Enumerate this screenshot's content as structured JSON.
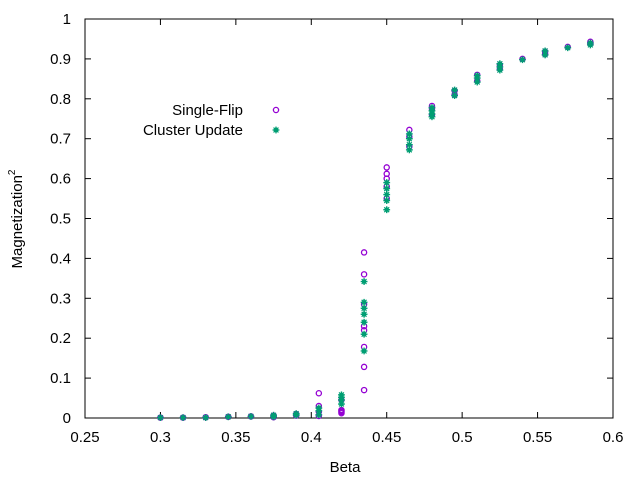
{
  "chart_data": {
    "type": "scatter",
    "title": "",
    "xlabel": "Beta",
    "ylabel": "Magnetization",
    "ylabel_superscript": "2",
    "xlim": [
      0.25,
      0.6
    ],
    "ylim": [
      0,
      1
    ],
    "xticks": [
      0.25,
      0.3,
      0.35,
      0.4,
      0.45,
      0.5,
      0.55,
      0.6
    ],
    "xtick_labels": [
      "0.25",
      "0.3",
      "0.35",
      "0.4",
      "0.45",
      "0.5",
      "0.55",
      "0.6"
    ],
    "yticks": [
      0,
      0.1,
      0.2,
      0.3,
      0.4,
      0.5,
      0.6,
      0.7,
      0.8,
      0.9,
      1
    ],
    "ytick_labels": [
      "0",
      "0.1",
      "0.2",
      "0.3",
      "0.4",
      "0.5",
      "0.6",
      "0.7",
      "0.8",
      "0.9",
      "1"
    ],
    "grid": false,
    "legend_position": "upper-left",
    "series": [
      {
        "name": "Single-Flip",
        "color": "#9400d3",
        "marker": "open-circle",
        "points": [
          [
            0.3,
            0.001
          ],
          [
            0.315,
            0.001
          ],
          [
            0.33,
            0.002
          ],
          [
            0.345,
            0.003
          ],
          [
            0.36,
            0.004
          ],
          [
            0.375,
            0.002
          ],
          [
            0.375,
            0.006
          ],
          [
            0.39,
            0.006
          ],
          [
            0.39,
            0.01
          ],
          [
            0.405,
            0.005
          ],
          [
            0.405,
            0.015
          ],
          [
            0.405,
            0.03
          ],
          [
            0.405,
            0.062
          ],
          [
            0.42,
            0.012
          ],
          [
            0.42,
            0.015
          ],
          [
            0.42,
            0.018
          ],
          [
            0.42,
            0.02
          ],
          [
            0.42,
            0.045
          ],
          [
            0.435,
            0.07
          ],
          [
            0.435,
            0.128
          ],
          [
            0.435,
            0.178
          ],
          [
            0.435,
            0.22
          ],
          [
            0.435,
            0.23
          ],
          [
            0.435,
            0.285
          ],
          [
            0.435,
            0.36
          ],
          [
            0.435,
            0.415
          ],
          [
            0.45,
            0.55
          ],
          [
            0.45,
            0.58
          ],
          [
            0.45,
            0.6
          ],
          [
            0.45,
            0.612
          ],
          [
            0.45,
            0.628
          ],
          [
            0.465,
            0.68
          ],
          [
            0.465,
            0.705
          ],
          [
            0.465,
            0.722
          ],
          [
            0.48,
            0.76
          ],
          [
            0.48,
            0.775
          ],
          [
            0.48,
            0.782
          ],
          [
            0.495,
            0.81
          ],
          [
            0.495,
            0.82
          ],
          [
            0.51,
            0.845
          ],
          [
            0.51,
            0.86
          ],
          [
            0.525,
            0.875
          ],
          [
            0.525,
            0.885
          ],
          [
            0.54,
            0.9
          ],
          [
            0.555,
            0.912
          ],
          [
            0.555,
            0.918
          ],
          [
            0.57,
            0.93
          ],
          [
            0.585,
            0.938
          ],
          [
            0.585,
            0.943
          ]
        ]
      },
      {
        "name": "Cluster Update",
        "color": "#009e73",
        "marker": "filled-star",
        "points": [
          [
            0.3,
            0.001
          ],
          [
            0.315,
            0.001
          ],
          [
            0.33,
            0.001
          ],
          [
            0.345,
            0.003
          ],
          [
            0.36,
            0.004
          ],
          [
            0.375,
            0.003
          ],
          [
            0.375,
            0.007
          ],
          [
            0.39,
            0.007
          ],
          [
            0.39,
            0.011
          ],
          [
            0.405,
            0.008
          ],
          [
            0.405,
            0.018
          ],
          [
            0.405,
            0.025
          ],
          [
            0.42,
            0.035
          ],
          [
            0.42,
            0.045
          ],
          [
            0.42,
            0.052
          ],
          [
            0.42,
            0.058
          ],
          [
            0.435,
            0.168
          ],
          [
            0.435,
            0.21
          ],
          [
            0.435,
            0.24
          ],
          [
            0.435,
            0.26
          ],
          [
            0.435,
            0.275
          ],
          [
            0.435,
            0.29
          ],
          [
            0.435,
            0.342
          ],
          [
            0.45,
            0.522
          ],
          [
            0.45,
            0.545
          ],
          [
            0.45,
            0.56
          ],
          [
            0.45,
            0.575
          ],
          [
            0.45,
            0.59
          ],
          [
            0.465,
            0.672
          ],
          [
            0.465,
            0.685
          ],
          [
            0.465,
            0.7
          ],
          [
            0.465,
            0.712
          ],
          [
            0.48,
            0.755
          ],
          [
            0.48,
            0.762
          ],
          [
            0.48,
            0.77
          ],
          [
            0.48,
            0.778
          ],
          [
            0.495,
            0.808
          ],
          [
            0.495,
            0.822
          ],
          [
            0.51,
            0.842
          ],
          [
            0.51,
            0.852
          ],
          [
            0.51,
            0.858
          ],
          [
            0.525,
            0.872
          ],
          [
            0.525,
            0.88
          ],
          [
            0.525,
            0.888
          ],
          [
            0.54,
            0.898
          ],
          [
            0.555,
            0.91
          ],
          [
            0.555,
            0.92
          ],
          [
            0.57,
            0.928
          ],
          [
            0.585,
            0.935
          ],
          [
            0.585,
            0.94
          ]
        ]
      }
    ]
  }
}
